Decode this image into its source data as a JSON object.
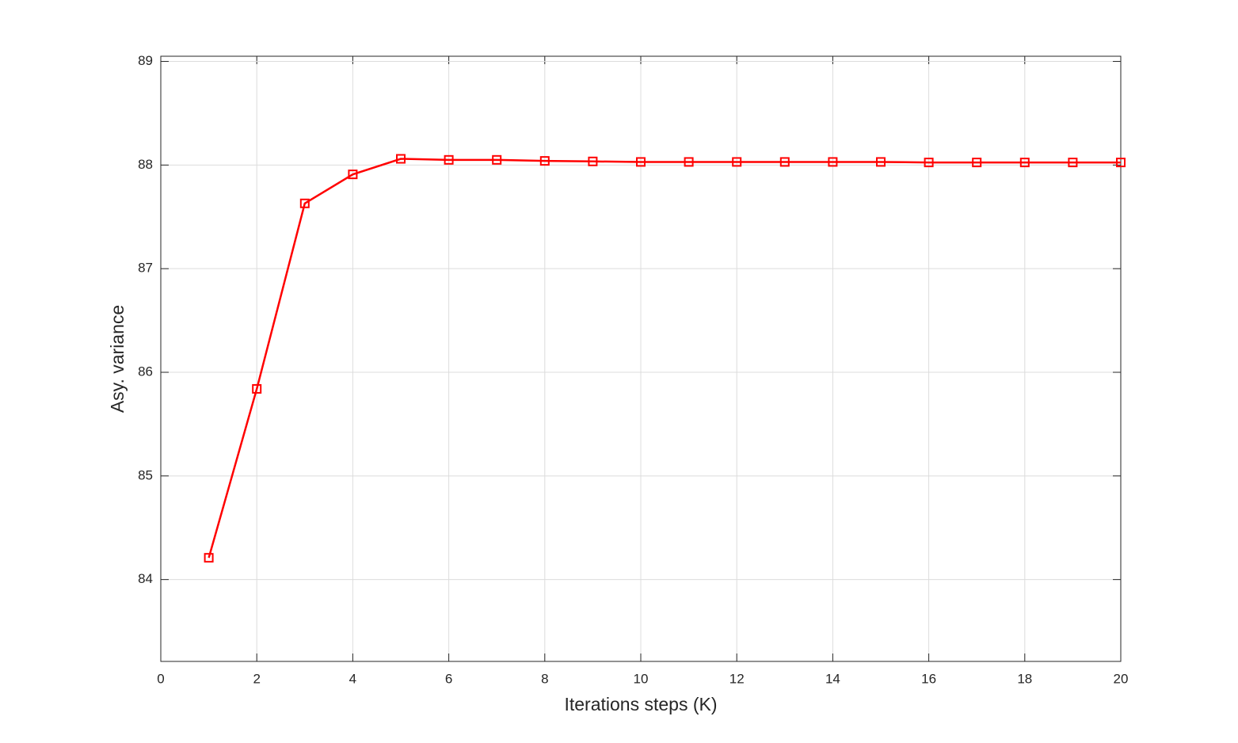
{
  "chart_data": {
    "type": "line",
    "xlabel": "Iterations steps (K)",
    "ylabel": "Asy. variance",
    "x": [
      1,
      2,
      3,
      4,
      5,
      6,
      7,
      8,
      9,
      10,
      11,
      12,
      13,
      14,
      15,
      16,
      17,
      18,
      19,
      20
    ],
    "series": [
      {
        "color": "#ff0000",
        "values": [
          84.21,
          85.84,
          87.63,
          87.91,
          88.06,
          88.05,
          88.05,
          88.04,
          88.035,
          88.03,
          88.03,
          88.03,
          88.03,
          88.03,
          88.03,
          88.025,
          88.025,
          88.025,
          88.025,
          88.025
        ]
      }
    ],
    "xlim": [
      0,
      20
    ],
    "xticks": [
      0,
      2,
      4,
      6,
      8,
      10,
      12,
      14,
      16,
      18,
      20
    ],
    "ylim": [
      83.21,
      89.05
    ],
    "yticks": [
      84,
      85,
      86,
      87,
      88,
      89
    ],
    "grid": true
  }
}
